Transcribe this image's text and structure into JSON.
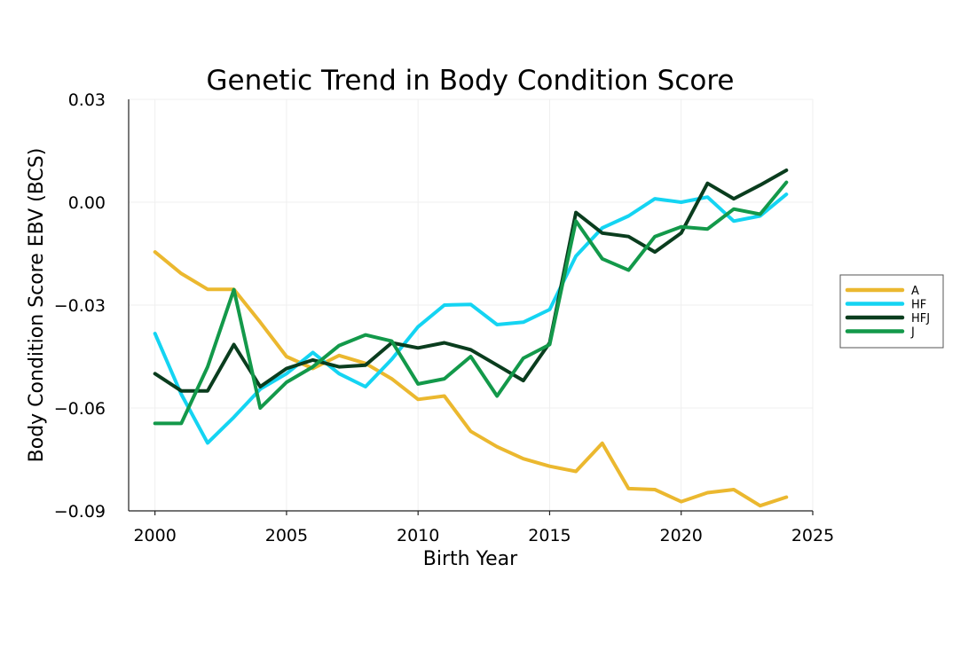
{
  "chart_data": {
    "type": "line",
    "title": "Genetic Trend in Body Condition Score",
    "xlabel": "Birth Year",
    "ylabel": "Body Condition Score EBV (BCS)",
    "xlim": [
      1999,
      2025
    ],
    "ylim": [
      -0.09,
      0.03
    ],
    "xticks": [
      2000,
      2005,
      2010,
      2015,
      2020,
      2025
    ],
    "xtick_labels": [
      "2000",
      "2005",
      "2010",
      "2015",
      "2020",
      "2025"
    ],
    "yticks": [
      0.03,
      0.0,
      -0.03,
      -0.06,
      -0.09
    ],
    "ytick_labels": [
      "0.03",
      "0.00",
      "−0.03",
      "−0.06",
      "−0.09"
    ],
    "grid": true,
    "legend_position": "right",
    "x": [
      2000,
      2001,
      2002,
      2003,
      2004,
      2005,
      2006,
      2007,
      2008,
      2009,
      2010,
      2011,
      2012,
      2013,
      2014,
      2015,
      2016,
      2017,
      2018,
      2019,
      2020,
      2021,
      2022,
      2023,
      2024
    ],
    "series": [
      {
        "name": "A",
        "color": "#EBB82F",
        "values": [
          -0.0145,
          -0.0208,
          -0.0254,
          -0.0254,
          -0.035,
          -0.045,
          -0.0485,
          -0.0447,
          -0.047,
          -0.0515,
          -0.0575,
          -0.0565,
          -0.0668,
          -0.0713,
          -0.0748,
          -0.077,
          -0.0785,
          -0.0703,
          -0.0835,
          -0.0838,
          -0.0873,
          -0.0847,
          -0.0838,
          -0.0885,
          -0.086
        ]
      },
      {
        "name": "HF",
        "color": "#14D4F2",
        "values": [
          -0.0383,
          -0.056,
          -0.0702,
          -0.0627,
          -0.0545,
          -0.05,
          -0.0438,
          -0.05,
          -0.0538,
          -0.0458,
          -0.0363,
          -0.03,
          -0.0298,
          -0.0357,
          -0.035,
          -0.0313,
          -0.0157,
          -0.0075,
          -0.004,
          0.001,
          0.0,
          0.0015,
          -0.0055,
          -0.004,
          0.0023
        ]
      },
      {
        "name": "HFJ",
        "color": "#0A3D1E",
        "values": [
          -0.05,
          -0.055,
          -0.055,
          -0.0415,
          -0.0538,
          -0.0485,
          -0.046,
          -0.048,
          -0.0475,
          -0.041,
          -0.0425,
          -0.041,
          -0.043,
          -0.0475,
          -0.052,
          -0.041,
          -0.003,
          -0.009,
          -0.01,
          -0.0145,
          -0.009,
          0.0055,
          0.001,
          0.005,
          0.0093
        ]
      },
      {
        "name": "J",
        "color": "#13994A",
        "values": [
          -0.0645,
          -0.0645,
          -0.048,
          -0.0255,
          -0.06,
          -0.0525,
          -0.048,
          -0.0418,
          -0.0387,
          -0.0405,
          -0.053,
          -0.0515,
          -0.045,
          -0.0565,
          -0.0455,
          -0.0415,
          -0.0055,
          -0.0165,
          -0.0198,
          -0.01,
          -0.0072,
          -0.0078,
          -0.002,
          -0.0035,
          0.0058
        ]
      }
    ]
  }
}
